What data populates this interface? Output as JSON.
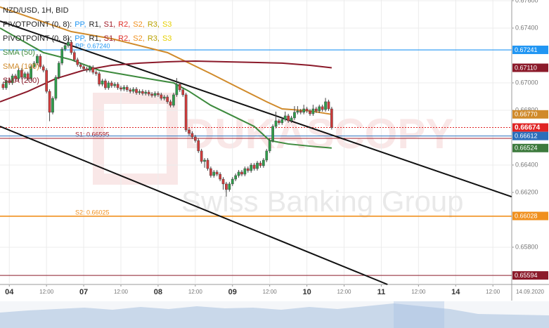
{
  "chart_data": {
    "type": "candlestick",
    "title": "NZD/USD, 1H, BID",
    "indicators": [
      {
        "name": "PIVOTPOINT (0, 8):",
        "levels": [
          {
            "text": "PP,",
            "color": "#2196f3"
          },
          {
            "text": "R1,",
            "color": "#222222"
          },
          {
            "text": "S1,",
            "color": "#a01c28"
          },
          {
            "text": "R2,",
            "color": "#e0302a"
          },
          {
            "text": "S2,",
            "color": "#f0901e"
          },
          {
            "text": "R3,",
            "color": "#b8a000"
          },
          {
            "text": "S3",
            "color": "#e6d000"
          }
        ]
      },
      {
        "name": "PIVOTPOINT (0, 8):",
        "levels": [
          {
            "text": "PP,",
            "color": "#2196f3"
          },
          {
            "text": "R1,",
            "color": "#222222"
          },
          {
            "text": "S1,",
            "color": "#a01c28"
          },
          {
            "text": "R2,",
            "color": "#e0302a"
          },
          {
            "text": "S2,",
            "color": "#f0901e"
          },
          {
            "text": "R3,",
            "color": "#b8a000"
          },
          {
            "text": "S3",
            "color": "#e6d000"
          }
        ]
      }
    ],
    "x": [
      -2,
      -1,
      0,
      1,
      2,
      3,
      4,
      5,
      6,
      7,
      8,
      9,
      10,
      11,
      12,
      13,
      14,
      15,
      16,
      17,
      18,
      19,
      20,
      21,
      22,
      23,
      24,
      25,
      26,
      27,
      28,
      29,
      30,
      31,
      32,
      33,
      34,
      35,
      36,
      37,
      38,
      39,
      40,
      41,
      42,
      43,
      44,
      45,
      46,
      47,
      48,
      49,
      50,
      51,
      52,
      53,
      54,
      55,
      56,
      57,
      58,
      59,
      60,
      61,
      62,
      63,
      64,
      65,
      66,
      67,
      68,
      69,
      70,
      71,
      72,
      73,
      74,
      75,
      76,
      77,
      78,
      79,
      80,
      81,
      82,
      83,
      84,
      85,
      86,
      87,
      88,
      89,
      90,
      91,
      92,
      93,
      94,
      95,
      96,
      97,
      98,
      99,
      100,
      101,
      102,
      103,
      104
    ],
    "ohlc": [
      [
        0.6699,
        0.67005,
        0.66949,
        0.66964
      ],
      [
        0.66964,
        0.6703,
        0.66949,
        0.67015
      ],
      [
        0.67015,
        0.6703,
        0.66985,
        0.67
      ],
      [
        0.67,
        0.67066,
        0.66985,
        0.67051
      ],
      [
        0.67051,
        0.67066,
        0.67016,
        0.67031
      ],
      [
        0.67031,
        0.67107,
        0.67016,
        0.67092
      ],
      [
        0.67092,
        0.67107,
        0.67026,
        0.67041
      ],
      [
        0.67041,
        0.67082,
        0.67026,
        0.67067
      ],
      [
        0.67067,
        0.67082,
        0.67016,
        0.67031
      ],
      [
        0.67031,
        0.67133,
        0.67016,
        0.67118
      ],
      [
        0.67118,
        0.67159,
        0.67103,
        0.67144
      ],
      [
        0.67144,
        0.6721,
        0.67129,
        0.67195
      ],
      [
        0.67195,
        0.6721,
        0.67103,
        0.67118
      ],
      [
        0.67118,
        0.67133,
        0.67077,
        0.67092
      ],
      [
        0.67092,
        0.67107,
        0.66923,
        0.66938
      ],
      [
        0.66938,
        0.66953,
        0.6672,
        0.66785
      ],
      [
        0.66785,
        0.66902,
        0.6677,
        0.66887
      ],
      [
        0.66887,
        0.67056,
        0.66872,
        0.67041
      ],
      [
        0.67041,
        0.67159,
        0.67026,
        0.67144
      ],
      [
        0.67144,
        0.67261,
        0.67129,
        0.67246
      ],
      [
        0.67246,
        0.67287,
        0.67231,
        0.67272
      ],
      [
        0.67272,
        0.6733,
        0.67257,
        0.67297
      ],
      [
        0.67297,
        0.67312,
        0.67206,
        0.67221
      ],
      [
        0.67221,
        0.67236,
        0.67154,
        0.67169
      ],
      [
        0.67169,
        0.67184,
        0.67118,
        0.67133
      ],
      [
        0.67133,
        0.67148,
        0.67103,
        0.67118
      ],
      [
        0.67118,
        0.67133,
        0.67088,
        0.67103
      ],
      [
        0.67103,
        0.67118,
        0.67077,
        0.67092
      ],
      [
        0.67092,
        0.67128,
        0.67077,
        0.67113
      ],
      [
        0.67113,
        0.67128,
        0.67062,
        0.67077
      ],
      [
        0.67077,
        0.67092,
        0.67052,
        0.67067
      ],
      [
        0.67067,
        0.67082,
        0.66975,
        0.6699
      ],
      [
        0.6699,
        0.6703,
        0.66975,
        0.67015
      ],
      [
        0.67015,
        0.6703,
        0.66949,
        0.66964
      ],
      [
        0.66964,
        0.67015,
        0.66949,
        0.67
      ],
      [
        0.67,
        0.67015,
        0.66964,
        0.66979
      ],
      [
        0.66979,
        0.67005,
        0.66964,
        0.6699
      ],
      [
        0.6699,
        0.67005,
        0.66949,
        0.66964
      ],
      [
        0.66964,
        0.66979,
        0.66939,
        0.66954
      ],
      [
        0.66954,
        0.66984,
        0.66939,
        0.66969
      ],
      [
        0.66969,
        0.66984,
        0.66934,
        0.66949
      ],
      [
        0.66949,
        0.66964,
        0.66923,
        0.66938
      ],
      [
        0.66938,
        0.66969,
        0.66923,
        0.66954
      ],
      [
        0.66954,
        0.66969,
        0.66913,
        0.66928
      ],
      [
        0.66928,
        0.66953,
        0.66913,
        0.66938
      ],
      [
        0.66938,
        0.66953,
        0.66908,
        0.66923
      ],
      [
        0.66923,
        0.66948,
        0.66908,
        0.66933
      ],
      [
        0.66933,
        0.66948,
        0.66903,
        0.66918
      ],
      [
        0.66918,
        0.66933,
        0.66893,
        0.66908
      ],
      [
        0.66908,
        0.66938,
        0.66893,
        0.66923
      ],
      [
        0.66923,
        0.66938,
        0.66898,
        0.66913
      ],
      [
        0.66913,
        0.66928,
        0.66872,
        0.66887
      ],
      [
        0.66887,
        0.66912,
        0.66872,
        0.66897
      ],
      [
        0.66897,
        0.66912,
        0.66847,
        0.66862
      ],
      [
        0.66862,
        0.66877,
        0.66821,
        0.66836
      ],
      [
        0.66836,
        0.66928,
        0.66821,
        0.66913
      ],
      [
        0.66913,
        0.67035,
        0.66898,
        0.6699
      ],
      [
        0.6699,
        0.67005,
        0.66934,
        0.66949
      ],
      [
        0.66949,
        0.66964,
        0.66898,
        0.66913
      ],
      [
        0.66913,
        0.66928,
        0.66641,
        0.66656
      ],
      [
        0.66656,
        0.66671,
        0.66616,
        0.66631
      ],
      [
        0.66631,
        0.66646,
        0.6659,
        0.66605
      ],
      [
        0.66605,
        0.6662,
        0.66564,
        0.66579
      ],
      [
        0.66579,
        0.66594,
        0.66488,
        0.66503
      ],
      [
        0.66503,
        0.66518,
        0.66411,
        0.66426
      ],
      [
        0.66426,
        0.66451,
        0.6638,
        0.66436
      ],
      [
        0.66436,
        0.66451,
        0.66359,
        0.66374
      ],
      [
        0.66374,
        0.66389,
        0.66308,
        0.66323
      ],
      [
        0.66323,
        0.66364,
        0.66308,
        0.66349
      ],
      [
        0.66349,
        0.66364,
        0.66318,
        0.66333
      ],
      [
        0.66333,
        0.66348,
        0.66282,
        0.66297
      ],
      [
        0.66297,
        0.66312,
        0.6622,
        0.66262
      ],
      [
        0.66262,
        0.66277,
        0.6617,
        0.66221
      ],
      [
        0.66221,
        0.66277,
        0.66206,
        0.66262
      ],
      [
        0.66262,
        0.66312,
        0.66247,
        0.66297
      ],
      [
        0.66297,
        0.66338,
        0.66282,
        0.66323
      ],
      [
        0.66323,
        0.66364,
        0.66308,
        0.66349
      ],
      [
        0.66349,
        0.66364,
        0.66318,
        0.66333
      ],
      [
        0.66333,
        0.66389,
        0.66318,
        0.66374
      ],
      [
        0.66374,
        0.66389,
        0.66344,
        0.66359
      ],
      [
        0.66359,
        0.66415,
        0.66344,
        0.664
      ],
      [
        0.664,
        0.66415,
        0.66359,
        0.66374
      ],
      [
        0.66374,
        0.6643,
        0.66359,
        0.66415
      ],
      [
        0.66415,
        0.6643,
        0.6638,
        0.66395
      ],
      [
        0.66395,
        0.66451,
        0.6638,
        0.66436
      ],
      [
        0.66436,
        0.66518,
        0.66421,
        0.66503
      ],
      [
        0.66503,
        0.66594,
        0.66488,
        0.66579
      ],
      [
        0.66579,
        0.66697,
        0.66564,
        0.66682
      ],
      [
        0.66682,
        0.6679,
        0.66667,
        0.66723
      ],
      [
        0.66723,
        0.66738,
        0.66693,
        0.66708
      ],
      [
        0.66708,
        0.66748,
        0.66693,
        0.66733
      ],
      [
        0.66733,
        0.6679,
        0.66718,
        0.66759
      ],
      [
        0.66759,
        0.66774,
        0.66708,
        0.66723
      ],
      [
        0.66723,
        0.66759,
        0.66708,
        0.66744
      ],
      [
        0.66744,
        0.6683,
        0.66729,
        0.66785
      ],
      [
        0.66785,
        0.6683,
        0.6677,
        0.66795
      ],
      [
        0.66795,
        0.6681,
        0.6677,
        0.66785
      ],
      [
        0.66785,
        0.6684,
        0.6677,
        0.6681
      ],
      [
        0.6681,
        0.66825,
        0.6678,
        0.66795
      ],
      [
        0.66795,
        0.6681,
        0.66759,
        0.66774
      ],
      [
        0.66774,
        0.6684,
        0.66759,
        0.6681
      ],
      [
        0.6681,
        0.66825,
        0.6678,
        0.66795
      ],
      [
        0.66795,
        0.66841,
        0.6678,
        0.66826
      ],
      [
        0.66826,
        0.66841,
        0.6679,
        0.66805
      ],
      [
        0.66805,
        0.6689,
        0.6679,
        0.66862
      ],
      [
        0.66862,
        0.66877,
        0.66795,
        0.6681
      ],
      [
        0.6681,
        0.66825,
        0.66659,
        0.66674
      ]
    ],
    "up_color": "#2e9e4a",
    "down_color": "#d23b3b",
    "series": [
      {
        "name": "SMA (50)",
        "color": "#3d8a3d",
        "x": [
          -3,
          11,
          20,
          29,
          42,
          53,
          58,
          65,
          72,
          79,
          84,
          90,
          97,
          104
        ],
        "values": [
          0.674,
          0.67221,
          0.67169,
          0.67092,
          0.67041,
          0.67,
          0.66938,
          0.66836,
          0.66759,
          0.66682,
          0.66579,
          0.66554,
          0.66538,
          0.66524
        ]
      },
      {
        "name": "SMA (100)",
        "color": "#d08a2a",
        "x": [
          -3,
          20,
          33,
          42,
          51,
          58,
          65,
          74,
          83,
          88,
          97,
          104
        ],
        "values": [
          0.67554,
          0.67374,
          0.67323,
          0.67272,
          0.67221,
          0.67144,
          0.67067,
          0.66964,
          0.66862,
          0.6681,
          0.66795,
          0.6677
        ]
      },
      {
        "name": "SMA (200)",
        "color": "#8b1a2a",
        "x": [
          -3,
          6,
          15,
          24,
          33,
          42,
          51,
          60,
          70,
          79,
          88,
          97,
          104
        ],
        "values": [
          0.66862,
          0.66938,
          0.67031,
          0.67092,
          0.67128,
          0.67144,
          0.67154,
          0.67159,
          0.67154,
          0.67149,
          0.67144,
          0.67128,
          0.6711
        ]
      }
    ],
    "trendlines": [
      [
        [
          -3,
          0.67451
        ],
        [
          162,
          0.66169
        ]
      ],
      [
        [
          -3,
          0.66682
        ],
        [
          122,
          0.65528
        ]
      ]
    ],
    "trendline_color": "#111111",
    "pivots": [
      {
        "value": 0.6724,
        "label": "PP: 0.67240",
        "color": "#2196f3"
      },
      {
        "value": 0.66595,
        "label": "S1: 0.66595",
        "color": "#a01c28"
      },
      {
        "value": 0.66025,
        "label": "S2: 0.66025",
        "color": "#f0901e"
      }
    ],
    "price_markers": [
      {
        "value": 0.67241,
        "label": "0.67241",
        "color": "#2196f3",
        "line": "solid"
      },
      {
        "value": 0.6711,
        "label": "0.67110",
        "color": "#8b1a2a",
        "line": "none"
      },
      {
        "value": 0.6677,
        "label": "0.66770",
        "color": "#d08a2a",
        "line": "none"
      },
      {
        "value": 0.66674,
        "label": "0.66674",
        "color": "#e02424",
        "line": "dotted"
      },
      {
        "value": 0.66612,
        "label": "0.66612",
        "color": "#2a6ebb",
        "line": "solid"
      },
      {
        "value": 0.66524,
        "label": "0.66524",
        "color": "#3d7a3d",
        "line": "none"
      },
      {
        "value": 0.66028,
        "label": "0.66028",
        "color": "#f0901e",
        "line": "solid"
      },
      {
        "value": 0.65594,
        "label": "0.65594",
        "color": "#8b1a2a",
        "line": "solid"
      }
    ],
    "xlim": [
      -3,
      162.08
    ],
    "ylim": [
      0.65528,
      0.67605
    ],
    "xticks": [
      {
        "value": 0,
        "label": "04"
      },
      {
        "value": 12,
        "label": "12:00"
      },
      {
        "value": 24,
        "label": "07"
      },
      {
        "value": 36,
        "label": "12:00"
      },
      {
        "value": 48,
        "label": "08"
      },
      {
        "value": 60,
        "label": "12:00"
      },
      {
        "value": 72,
        "label": "09"
      },
      {
        "value": 84,
        "label": "12:00"
      },
      {
        "value": 96,
        "label": "10"
      },
      {
        "value": 108,
        "label": "12:00"
      },
      {
        "value": 120,
        "label": "11"
      },
      {
        "value": 132,
        "label": "12:00"
      },
      {
        "value": 144,
        "label": "14"
      },
      {
        "value": 156,
        "label": "12:00"
      }
    ],
    "yticks": [
      {
        "value": 0.676,
        "label": "0.67600"
      },
      {
        "value": 0.674,
        "label": "0.67400"
      },
      {
        "value": 0.67,
        "label": "0.67000"
      },
      {
        "value": 0.668,
        "label": "0.66800"
      },
      {
        "value": 0.664,
        "label": "0.66400"
      },
      {
        "value": 0.662,
        "label": "0.66200"
      },
      {
        "value": 0.658,
        "label": "0.65800"
      }
    ],
    "date_label": "14.09.2020",
    "grid": true,
    "watermark": {
      "brand": "DUKASCOPY",
      "tagline": "Swiss Banking Group"
    }
  }
}
